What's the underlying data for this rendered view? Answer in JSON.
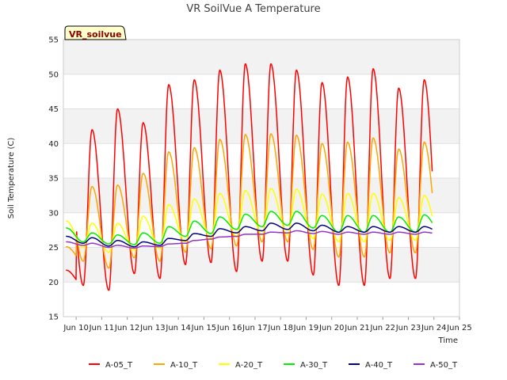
{
  "chart_data": {
    "type": "line",
    "title": "VR SoilVue A Temperature",
    "xlabel": "Time",
    "ylabel": "Soil Temperature (C)",
    "badge": "VR_soilvue",
    "ylim": [
      15,
      55
    ],
    "xlim": [
      9.5,
      25.0
    ],
    "yticks": [
      15,
      20,
      25,
      30,
      35,
      40,
      45,
      50,
      55
    ],
    "xticks": [
      {
        "v": 10,
        "label": "Jun 10"
      },
      {
        "v": 11,
        "label": "Jun 11"
      },
      {
        "v": 12,
        "label": "Jun 12"
      },
      {
        "v": 13,
        "label": "Jun 13"
      },
      {
        "v": 14,
        "label": "Jun 14"
      },
      {
        "v": 15,
        "label": "Jun 15"
      },
      {
        "v": 16,
        "label": "Jun 16"
      },
      {
        "v": 17,
        "label": "Jun 17"
      },
      {
        "v": 18,
        "label": "Jun 18"
      },
      {
        "v": 19,
        "label": "Jun 19"
      },
      {
        "v": 20,
        "label": "Jun 20"
      },
      {
        "v": 21,
        "label": "Jun 21"
      },
      {
        "v": 22,
        "label": "Jun 22"
      },
      {
        "v": 23,
        "label": "Jun 23"
      },
      {
        "v": 24,
        "label": "Jun 24"
      },
      {
        "v": 25,
        "label": "Jun 25"
      }
    ],
    "x_start": 9.6,
    "x_end": 23.95,
    "grid": true,
    "legend_position": "bottom",
    "series": [
      {
        "name": "A-05_T",
        "color": "#ff0000",
        "day_peaks": [
          0,
          42,
          45,
          43,
          48.5,
          49.2,
          50.6,
          51.5,
          51.5,
          50.6,
          48.8,
          49.6,
          50.8,
          48.0,
          49.2
        ],
        "day_mins": [
          20.2,
          19.5,
          18.8,
          21.2,
          20.5,
          22.5,
          22.8,
          21.5,
          23.0,
          23.0,
          21.0,
          19.5,
          19.5,
          20.5,
          20.5
        ]
      },
      {
        "name": "A-10_T",
        "color": "#ffa500",
        "day_peaks": [
          0,
          33.8,
          34.0,
          35.7,
          38.8,
          39.4,
          40.6,
          41.3,
          41.4,
          41.2,
          40.0,
          40.2,
          40.8,
          39.2,
          40.2
        ],
        "day_mins": [
          23.6,
          23.0,
          22.0,
          23.5,
          23.0,
          24.3,
          24.8,
          25.2,
          25.8,
          25.8,
          24.7,
          23.6,
          23.6,
          24.2,
          24.2
        ]
      },
      {
        "name": "A-20_T",
        "color": "#ffff00",
        "day_peaks": [
          28.8,
          28.5,
          28.5,
          29.5,
          31.2,
          32.0,
          32.8,
          33.2,
          33.5,
          33.4,
          32.7,
          32.8,
          32.8,
          32.2,
          32.5
        ],
        "day_mins": [
          25.5,
          25.0,
          24.3,
          24.6,
          24.8,
          25.8,
          26.3,
          26.5,
          26.8,
          26.8,
          26.3,
          25.8,
          25.8,
          26.0,
          26.0
        ]
      },
      {
        "name": "A-30_T",
        "color": "#00ee00",
        "day_peaks": [
          27.8,
          27.1,
          26.8,
          27.1,
          28.0,
          28.8,
          29.4,
          29.8,
          30.2,
          30.2,
          29.6,
          29.6,
          29.6,
          29.4,
          29.7
        ],
        "day_mins": [
          27.0,
          25.8,
          25.5,
          25.4,
          25.6,
          26.6,
          27.0,
          27.6,
          28.0,
          28.2,
          27.8,
          27.2,
          27.2,
          27.2,
          27.2
        ]
      },
      {
        "name": "A-40_T",
        "color": "#00008b",
        "day_peaks": [
          26.6,
          26.4,
          26.0,
          25.8,
          26.3,
          27.0,
          27.7,
          28.0,
          28.5,
          28.5,
          28.2,
          28.0,
          28.0,
          28.0,
          28.0
        ],
        "day_mins": [
          26.3,
          25.6,
          25.2,
          25.1,
          25.3,
          26.0,
          26.6,
          27.1,
          27.4,
          27.6,
          27.4,
          27.2,
          27.2,
          27.2,
          27.2
        ]
      },
      {
        "name": "A-50_T",
        "color": "#9932cc",
        "day_peaks": [
          25.8,
          25.6,
          25.3,
          25.2,
          25.5,
          26.0,
          26.5,
          26.9,
          27.2,
          27.4,
          27.3,
          27.2,
          27.2,
          27.2,
          27.2
        ],
        "day_mins": [
          25.6,
          25.3,
          25.0,
          24.9,
          25.1,
          25.6,
          26.2,
          26.6,
          26.9,
          27.1,
          27.0,
          26.9,
          26.9,
          26.9,
          26.9
        ]
      }
    ]
  }
}
